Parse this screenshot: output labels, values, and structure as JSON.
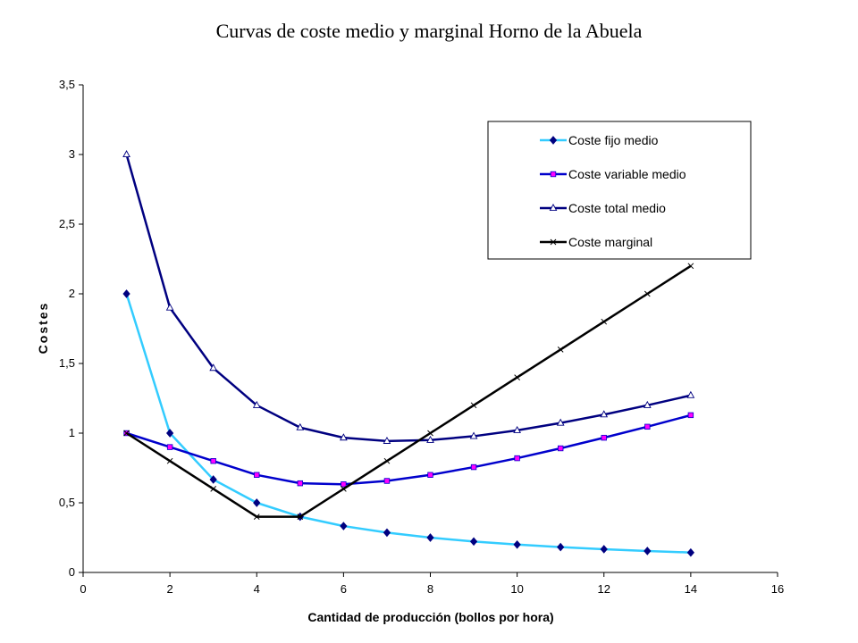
{
  "chart_data": {
    "type": "line",
    "title": "Curvas de coste medio y marginal Horno de la Abuela",
    "xlabel": "Cantidad de producción (bollos por hora)",
    "ylabel": "Costes",
    "xlim": [
      0,
      16
    ],
    "ylim": [
      0,
      3.5
    ],
    "x_ticks": [
      0,
      2,
      4,
      6,
      8,
      10,
      12,
      14,
      16
    ],
    "y_ticks": [
      0,
      0.5,
      1,
      1.5,
      2,
      2.5,
      3,
      3.5
    ],
    "x_tick_labels": [
      "0",
      "2",
      "4",
      "6",
      "8",
      "10",
      "12",
      "14",
      "16"
    ],
    "y_tick_labels": [
      "0",
      "0,5",
      "1",
      "1,5",
      "2",
      "2,5",
      "3",
      "3,5"
    ],
    "grid": false,
    "legend_position": "top-right",
    "x": [
      1,
      2,
      3,
      4,
      5,
      6,
      7,
      8,
      9,
      10,
      11,
      12,
      13,
      14
    ],
    "series": [
      {
        "name": "Coste fijo medio",
        "color": "#33CCFF",
        "marker_color": "#000080",
        "marker": "diamond",
        "values": [
          2,
          1,
          0.667,
          0.5,
          0.4,
          0.333,
          0.286,
          0.25,
          0.222,
          0.2,
          0.182,
          0.167,
          0.154,
          0.143
        ]
      },
      {
        "name": "Coste variable medio",
        "color": "#0000CC",
        "marker_color": "#FF00FF",
        "marker": "square",
        "values": [
          1,
          0.9,
          0.8,
          0.7,
          0.64,
          0.633,
          0.657,
          0.7,
          0.756,
          0.82,
          0.891,
          0.967,
          1.046,
          1.129
        ]
      },
      {
        "name": "Coste total medio",
        "color": "#000080",
        "marker_color": "#FFFFFF",
        "marker": "triangle",
        "values": [
          3,
          1.9,
          1.467,
          1.2,
          1.04,
          0.967,
          0.943,
          0.95,
          0.978,
          1.02,
          1.073,
          1.133,
          1.2,
          1.271
        ]
      },
      {
        "name": "Coste marginal",
        "color": "#000000",
        "marker_color": "#000000",
        "marker": "x",
        "values": [
          1,
          0.8,
          0.6,
          0.4,
          0.4,
          0.6,
          0.8,
          1,
          1.2,
          1.4,
          1.6,
          1.8,
          2,
          2.2
        ]
      }
    ]
  }
}
